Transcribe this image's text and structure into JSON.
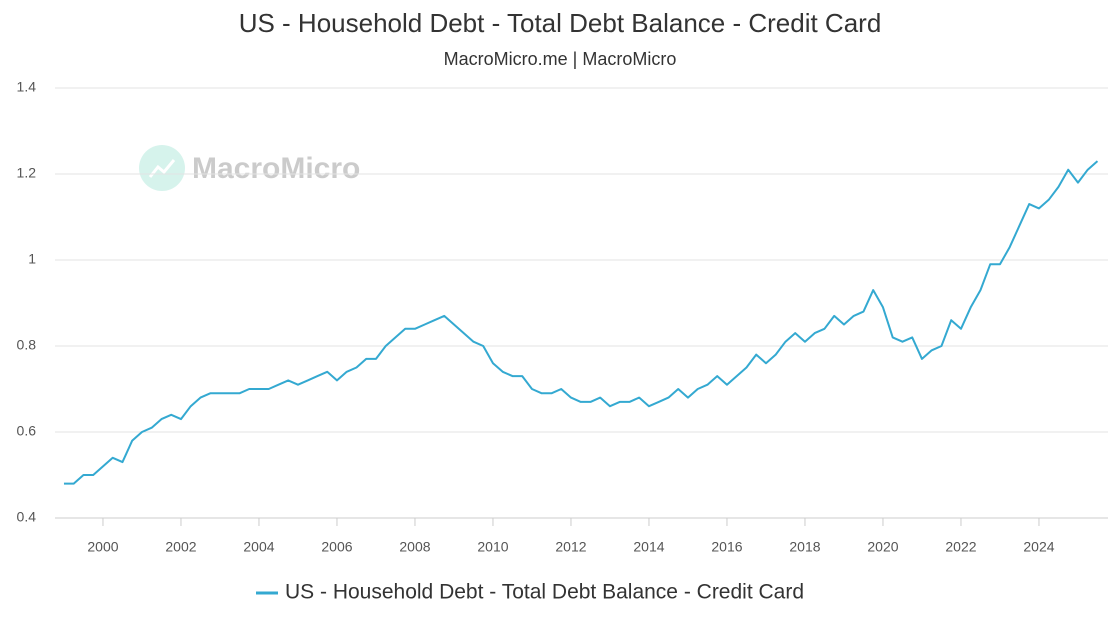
{
  "chart_data": {
    "type": "line",
    "title": "US - Household Debt - Total Debt Balance - Credit Card",
    "subtitle": "MacroMicro.me | MacroMicro",
    "watermark": "MacroMicro",
    "x": [
      1999,
      1999.25,
      1999.5,
      1999.75,
      2000,
      2000.25,
      2000.5,
      2000.75,
      2001,
      2001.25,
      2001.5,
      2001.75,
      2002,
      2002.25,
      2002.5,
      2002.75,
      2003,
      2003.25,
      2003.5,
      2003.75,
      2004,
      2004.25,
      2004.5,
      2004.75,
      2005,
      2005.25,
      2005.5,
      2005.75,
      2006,
      2006.25,
      2006.5,
      2006.75,
      2007,
      2007.25,
      2007.5,
      2007.75,
      2008,
      2008.25,
      2008.5,
      2008.75,
      2009,
      2009.25,
      2009.5,
      2009.75,
      2010,
      2010.25,
      2010.5,
      2010.75,
      2011,
      2011.25,
      2011.5,
      2011.75,
      2012,
      2012.25,
      2012.5,
      2012.75,
      2013,
      2013.25,
      2013.5,
      2013.75,
      2014,
      2014.25,
      2014.5,
      2014.75,
      2015,
      2015.25,
      2015.5,
      2015.75,
      2016,
      2016.25,
      2016.5,
      2016.75,
      2017,
      2017.25,
      2017.5,
      2017.75,
      2018,
      2018.25,
      2018.5,
      2018.75,
      2019,
      2019.25,
      2019.5,
      2019.75,
      2020,
      2020.25,
      2020.5,
      2020.75,
      2021,
      2021.25,
      2021.5,
      2021.75,
      2022,
      2022.25,
      2022.5,
      2022.75,
      2023,
      2023.25,
      2023.5,
      2023.75,
      2024,
      2024.25,
      2024.5,
      2024.75,
      2025,
      2025.25,
      2025.5
    ],
    "series": [
      {
        "name": "US - Household Debt - Total Debt Balance - Credit Card",
        "color": "#34a9d1",
        "values": [
          0.48,
          0.48,
          0.5,
          0.5,
          0.52,
          0.54,
          0.53,
          0.58,
          0.6,
          0.61,
          0.63,
          0.64,
          0.63,
          0.66,
          0.68,
          0.69,
          0.69,
          0.69,
          0.69,
          0.7,
          0.7,
          0.7,
          0.71,
          0.72,
          0.71,
          0.72,
          0.73,
          0.74,
          0.72,
          0.74,
          0.75,
          0.77,
          0.77,
          0.8,
          0.82,
          0.84,
          0.84,
          0.85,
          0.86,
          0.87,
          0.85,
          0.83,
          0.81,
          0.8,
          0.76,
          0.74,
          0.73,
          0.73,
          0.7,
          0.69,
          0.69,
          0.7,
          0.68,
          0.67,
          0.67,
          0.68,
          0.66,
          0.67,
          0.67,
          0.68,
          0.66,
          0.67,
          0.68,
          0.7,
          0.68,
          0.7,
          0.71,
          0.73,
          0.71,
          0.73,
          0.75,
          0.78,
          0.76,
          0.78,
          0.81,
          0.83,
          0.81,
          0.83,
          0.84,
          0.87,
          0.85,
          0.87,
          0.88,
          0.93,
          0.89,
          0.82,
          0.81,
          0.82,
          0.77,
          0.79,
          0.8,
          0.86,
          0.84,
          0.89,
          0.93,
          0.99,
          0.99,
          1.03,
          1.08,
          1.13,
          1.12,
          1.14,
          1.17,
          1.21,
          1.18,
          1.21,
          1.23
        ]
      }
    ],
    "xlim": [
      1998.77,
      2025.77
    ],
    "xticks": [
      2000,
      2002,
      2004,
      2006,
      2008,
      2010,
      2012,
      2014,
      2016,
      2018,
      2020,
      2022,
      2024
    ],
    "ylim": [
      0.4,
      1.4
    ],
    "yticks": [
      0.4,
      0.6,
      0.8,
      1,
      1.2,
      1.4
    ],
    "grid": true
  }
}
